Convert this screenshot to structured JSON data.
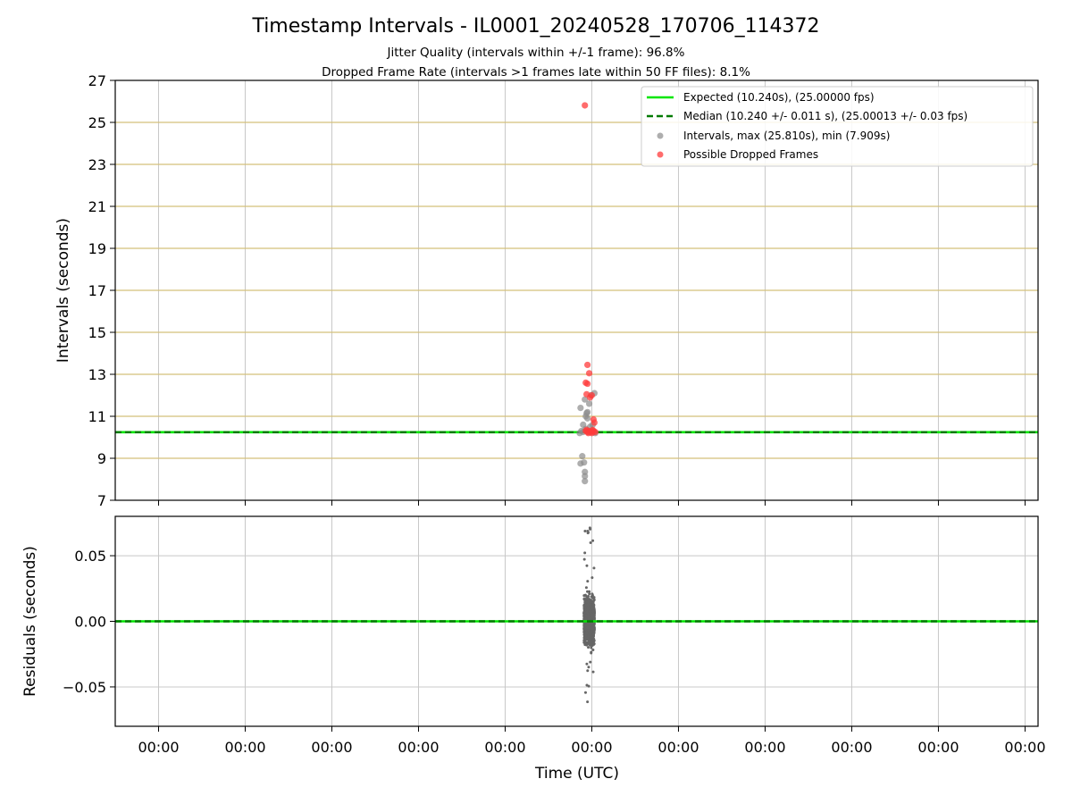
{
  "figure": {
    "title": "Timestamp Intervals - IL0001_20240528_170706_114372",
    "subtitle_line1": "Jitter Quality (intervals within +/-1 frame): 96.8%",
    "subtitle_line2": "Dropped Frame Rate (intervals >1 frames late within 50 FF files): 8.1%",
    "xlabel": "Time (UTC)"
  },
  "colors": {
    "expected": "#00e600",
    "median": "#007a00",
    "intervals": "#8c8c8c",
    "dropped": "#ff3b3b",
    "hband": "#d4c07a",
    "grid": "#c8c8c8",
    "residual": "#666666"
  },
  "chart_data": [
    {
      "type": "scatter",
      "ylabel": "Intervals (seconds)",
      "ylim": [
        7,
        27
      ],
      "yticks": [
        7,
        9,
        11,
        13,
        15,
        17,
        19,
        21,
        23,
        25,
        27
      ],
      "xlim": [
        -0.5,
        10.15
      ],
      "x_ticks": [
        0,
        1,
        2,
        3,
        4,
        5,
        6,
        7,
        8,
        9,
        10
      ],
      "x_tick_labels": [
        "00:00",
        "00:00",
        "00:00",
        "00:00",
        "00:00",
        "00:00",
        "00:00",
        "00:00",
        "00:00",
        "00:00",
        "00:00"
      ],
      "grid": true,
      "legend_position": "top-right",
      "legend": [
        "Expected (10.240s), (25.00000 fps)",
        "Median (10.240 +/- 0.011 s), (25.00013 +/- 0.03 fps)",
        "Intervals, max (25.810s), min (7.909s)",
        "Possible Dropped Frames"
      ],
      "expected_interval": 10.24,
      "median_interval": 10.24,
      "series": [
        {
          "name": "Intervals, max (25.810s), min (7.909s)",
          "points": [
            [
              4.88,
              10.3
            ],
            [
              4.9,
              10.6
            ],
            [
              4.87,
              11.4
            ],
            [
              4.92,
              11.8
            ],
            [
              4.89,
              9.1
            ],
            [
              4.87,
              8.75
            ],
            [
              4.91,
              8.8
            ],
            [
              4.92,
              8.35
            ],
            [
              4.92,
              8.15
            ],
            [
              4.92,
              7.91
            ],
            [
              4.93,
              11.0
            ],
            [
              4.95,
              11.2
            ],
            [
              4.94,
              11.15
            ],
            [
              4.97,
              11.6
            ],
            [
              4.99,
              12.0
            ],
            [
              5.03,
              12.1
            ],
            [
              4.95,
              10.9
            ],
            [
              4.98,
              10.5
            ],
            [
              4.9,
              10.25
            ],
            [
              4.96,
              10.25
            ],
            [
              5.0,
              10.3
            ],
            [
              5.02,
              10.25
            ],
            [
              4.93,
              10.4
            ],
            [
              5.01,
              10.6
            ],
            [
              4.86,
              10.2
            ],
            [
              5.04,
              10.2
            ]
          ]
        },
        {
          "name": "Possible Dropped Frames",
          "points": [
            [
              4.92,
              25.81
            ],
            [
              4.95,
              13.45
            ],
            [
              4.97,
              13.05
            ],
            [
              4.93,
              12.6
            ],
            [
              4.95,
              12.55
            ],
            [
              4.94,
              12.05
            ],
            [
              5.0,
              12.0
            ],
            [
              4.98,
              11.9
            ],
            [
              5.02,
              10.85
            ],
            [
              5.03,
              10.7
            ],
            [
              4.93,
              10.3
            ],
            [
              4.95,
              10.25
            ],
            [
              4.97,
              10.3
            ],
            [
              4.99,
              10.25
            ],
            [
              5.0,
              10.2
            ],
            [
              5.02,
              10.3
            ],
            [
              5.04,
              10.25
            ],
            [
              4.96,
              10.2
            ],
            [
              4.94,
              10.35
            ],
            [
              5.01,
              10.35
            ]
          ]
        }
      ]
    },
    {
      "type": "scatter",
      "ylabel": "Residuals (seconds)",
      "ylim": [
        -0.08,
        0.08
      ],
      "yticks": [
        -0.05,
        0.0,
        0.05
      ],
      "ytick_labels": [
        "−0.05",
        "0.00",
        "0.05"
      ],
      "xlim": [
        -0.5,
        10.15
      ],
      "x_ticks": [
        0,
        1,
        2,
        3,
        4,
        5,
        6,
        7,
        8,
        9,
        10
      ],
      "x_tick_labels": [
        "00:00",
        "00:00",
        "00:00",
        "00:00",
        "00:00",
        "00:00",
        "00:00",
        "00:00",
        "00:00",
        "00:00",
        "00:00"
      ],
      "grid": true,
      "series": [
        {
          "name": "Residuals",
          "x_center": 4.97,
          "x_spread": 0.12,
          "count": 1500,
          "range": [
            -0.062,
            0.074
          ],
          "core_range": [
            -0.03,
            0.03
          ]
        }
      ]
    }
  ]
}
